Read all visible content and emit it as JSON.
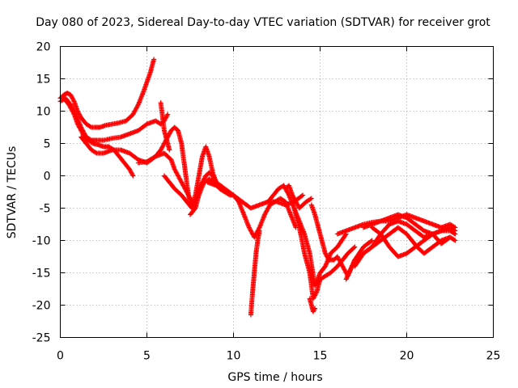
{
  "chart_data": {
    "type": "scatter",
    "title": "Day 080 of 2023, Sidereal Day-to-day VTEC variation (SDTVAR) for receiver grot",
    "xlabel": "GPS time / hours",
    "ylabel": "SDTVAR / TECUs",
    "xlim": [
      0,
      25
    ],
    "ylim": [
      -25,
      20
    ],
    "xticks": [
      0,
      5,
      10,
      15,
      20,
      25
    ],
    "yticks": [
      -25,
      -20,
      -15,
      -10,
      -5,
      0,
      5,
      10,
      15,
      20
    ],
    "xtick_labels": [
      "0",
      "5",
      "10",
      "15",
      "20",
      "25"
    ],
    "ytick_labels": [
      "-25",
      "-20",
      "-15",
      "-10",
      "-5",
      "0",
      "5",
      "10",
      "15",
      "20"
    ],
    "grid": true,
    "marker": "+",
    "color": "#ff0000",
    "series": [
      {
        "x": [
          0.0,
          0.2,
          0.4,
          0.6,
          0.8,
          1.0,
          1.2,
          1.5,
          1.8,
          2.0,
          2.3,
          2.6,
          3.0,
          3.4,
          3.8,
          4.2,
          4.5,
          4.8,
          5.0,
          5.2,
          5.4
        ],
        "y": [
          12,
          12.5,
          12.8,
          12.5,
          11.5,
          10,
          9,
          8,
          7.5,
          7.5,
          7.5,
          7.8,
          8,
          8.2,
          8.5,
          9.5,
          11,
          13,
          14.5,
          16,
          18
        ]
      },
      {
        "x": [
          0.0,
          0.3,
          0.6,
          0.9,
          1.2,
          1.5,
          1.8,
          2.1,
          2.5,
          3.0,
          3.5,
          4.0,
          4.5,
          5.0,
          5.5,
          5.8,
          6.0,
          6.2
        ],
        "y": [
          11.5,
          12,
          11,
          9.5,
          7.5,
          6,
          5.5,
          5.5,
          5.5,
          5.8,
          6,
          6.5,
          7,
          8,
          8.5,
          8,
          8.5,
          9.5
        ]
      },
      {
        "x": [
          0.2,
          0.5,
          0.8,
          1.0,
          1.3,
          1.6,
          1.9,
          2.2,
          2.5,
          2.8,
          3.1,
          3.4,
          3.7,
          4.0,
          4.2
        ],
        "y": [
          12,
          11,
          9.5,
          8,
          6.5,
          5.5,
          5,
          4.8,
          4.5,
          4.5,
          4,
          3,
          2,
          1,
          0
        ]
      },
      {
        "x": [
          1.2,
          1.5,
          1.8,
          2.1,
          2.5,
          3.0,
          3.5,
          4.0,
          4.5,
          5.0,
          5.5,
          6.0,
          6.2,
          6.4,
          6.6,
          6.8,
          7.0,
          7.2,
          7.4,
          7.6
        ],
        "y": [
          6,
          5,
          4,
          3.5,
          3.5,
          4,
          4,
          3.5,
          2.5,
          2,
          3,
          3.5,
          3,
          2.5,
          1,
          0,
          -1,
          -2,
          -3,
          -4
        ]
      },
      {
        "x": [
          4.5,
          5.0,
          5.5,
          5.8,
          6.0,
          6.2,
          6.4,
          6.6,
          6.8,
          7.0,
          7.2,
          7.4,
          7.6,
          7.8,
          8.0,
          8.2,
          8.4,
          8.6,
          8.8,
          9.0
        ],
        "y": [
          2,
          2.2,
          3,
          4,
          5,
          6,
          7,
          7.5,
          7,
          5,
          1,
          -3,
          -5,
          -4,
          -2,
          -1,
          0,
          0.5,
          0,
          -1
        ]
      },
      {
        "x": [
          6.0,
          6.3,
          6.6,
          7.0,
          7.3,
          7.6,
          7.8,
          8.0,
          8.2,
          8.4,
          8.6,
          8.8,
          9.0,
          9.2,
          9.5,
          9.8,
          10.0
        ],
        "y": [
          0,
          -1,
          -2,
          -3,
          -4,
          -5,
          -3,
          0,
          3,
          4.5,
          3,
          0.5,
          -1,
          -2,
          -2.5,
          -3,
          -3
        ]
      },
      {
        "x": [
          7.5,
          7.8,
          8.0,
          8.3,
          8.6,
          9.0,
          9.5,
          10.0,
          10.5,
          11.0,
          11.5,
          12.0,
          12.5,
          13.0,
          13.5,
          14.0
        ],
        "y": [
          -6,
          -5,
          -3,
          -1,
          -0.5,
          -1,
          -2,
          -3,
          -4,
          -5,
          -4.5,
          -4,
          -4,
          -4.5,
          -4,
          -3
        ]
      },
      {
        "x": [
          8.5,
          9.0,
          9.5,
          10.0,
          10.3,
          10.6,
          10.9,
          11.2,
          11.5,
          11.8,
          12.1,
          12.4,
          12.7,
          13.0,
          13.3,
          13.6
        ],
        "y": [
          -1,
          -1.5,
          -2.5,
          -3,
          -4,
          -6,
          -8,
          -9.5,
          -8,
          -6,
          -4.5,
          -4,
          -3.5,
          -4,
          -6,
          -8
        ]
      },
      {
        "x": [
          11.0,
          11.1,
          11.2,
          11.3,
          11.4,
          11.5
        ],
        "y": [
          -21.5,
          -18,
          -15,
          -12,
          -10,
          -8.5
        ]
      },
      {
        "x": [
          12.0,
          12.3,
          12.6,
          12.9,
          13.2,
          13.5,
          13.8,
          14.1,
          14.4,
          14.7,
          15.0,
          15.3,
          15.6,
          16.0,
          16.5
        ],
        "y": [
          -4,
          -3,
          -2,
          -1.5,
          -3,
          -5,
          -7,
          -9,
          -12,
          -17,
          -15,
          -14,
          -12,
          -11,
          -9
        ]
      },
      {
        "x": [
          13.5,
          13.8,
          14.1,
          14.4,
          14.6,
          14.8,
          15.0,
          15.3,
          15.6,
          16.0,
          16.3,
          16.6,
          17.0
        ],
        "y": [
          -5,
          -8,
          -12,
          -15,
          -19,
          -18,
          -16,
          -15.5,
          -15,
          -14,
          -13,
          -12,
          -11
        ]
      },
      {
        "x": [
          14.5,
          14.7,
          14.9,
          15.1,
          15.3,
          15.5,
          15.8,
          16.0,
          16.3,
          16.6,
          17.0,
          17.5,
          18.0
        ],
        "y": [
          -4.5,
          -6,
          -8,
          -10,
          -12,
          -13,
          -13,
          -12.5,
          -14,
          -15.5,
          -13,
          -11,
          -10
        ]
      },
      {
        "x": [
          16.0,
          16.5,
          17.0,
          17.5,
          18.0,
          18.5,
          19.0,
          19.5,
          20.0,
          20.5,
          21.0,
          21.5,
          22.0,
          22.5,
          22.8
        ],
        "y": [
          -9,
          -8.5,
          -8,
          -7.5,
          -7.2,
          -7,
          -7,
          -6.5,
          -6,
          -6.5,
          -7,
          -7.5,
          -8,
          -7.5,
          -8
        ]
      },
      {
        "x": [
          16.5,
          17.0,
          17.5,
          18.0,
          18.5,
          19.0,
          19.5,
          20.0,
          20.5,
          21.0,
          21.5,
          22.0,
          22.5,
          22.8
        ],
        "y": [
          -16,
          -13,
          -12,
          -11,
          -9,
          -7.5,
          -7,
          -7.5,
          -8.5,
          -9.5,
          -9,
          -8.5,
          -8.5,
          -9
        ]
      },
      {
        "x": [
          17.0,
          17.5,
          18.0,
          18.5,
          19.0,
          19.5,
          20.0,
          20.3,
          20.6,
          21.0,
          21.5,
          22.0,
          22.5
        ],
        "y": [
          -14,
          -12,
          -11,
          -10,
          -9,
          -8,
          -9,
          -10,
          -11,
          -12,
          -11,
          -10,
          -9.5
        ]
      },
      {
        "x": [
          18.0,
          18.5,
          19.0,
          19.5,
          20.0,
          20.5,
          21.0,
          21.5,
          22.0,
          22.5,
          22.8
        ],
        "y": [
          -8,
          -9,
          -11,
          -12.5,
          -12,
          -11,
          -10,
          -9,
          -8.5,
          -8,
          -8.5
        ]
      },
      {
        "x": [
          17.5,
          18.0,
          18.5,
          19.0,
          19.5,
          20.0,
          20.5,
          21.0,
          21.5,
          22.0,
          22.5,
          22.8
        ],
        "y": [
          -8,
          -7.5,
          -7,
          -6.5,
          -6,
          -6.5,
          -7.5,
          -8.5,
          -9,
          -10.5,
          -9.5,
          -10
        ]
      },
      {
        "x": [
          13.0,
          13.2,
          13.4,
          13.6,
          13.8,
          14.0,
          14.2,
          14.5
        ],
        "y": [
          -2,
          -1.5,
          -3,
          -4,
          -5,
          -4.5,
          -4,
          -3.5
        ]
      },
      {
        "x": [
          5.8,
          6.0,
          6.1,
          6.2,
          6.3
        ],
        "y": [
          11.3,
          7,
          6,
          5,
          4
        ]
      },
      {
        "x": [
          14.4,
          14.5,
          14.6,
          14.7
        ],
        "y": [
          -19,
          -20,
          -21,
          -20.5
        ]
      }
    ]
  }
}
